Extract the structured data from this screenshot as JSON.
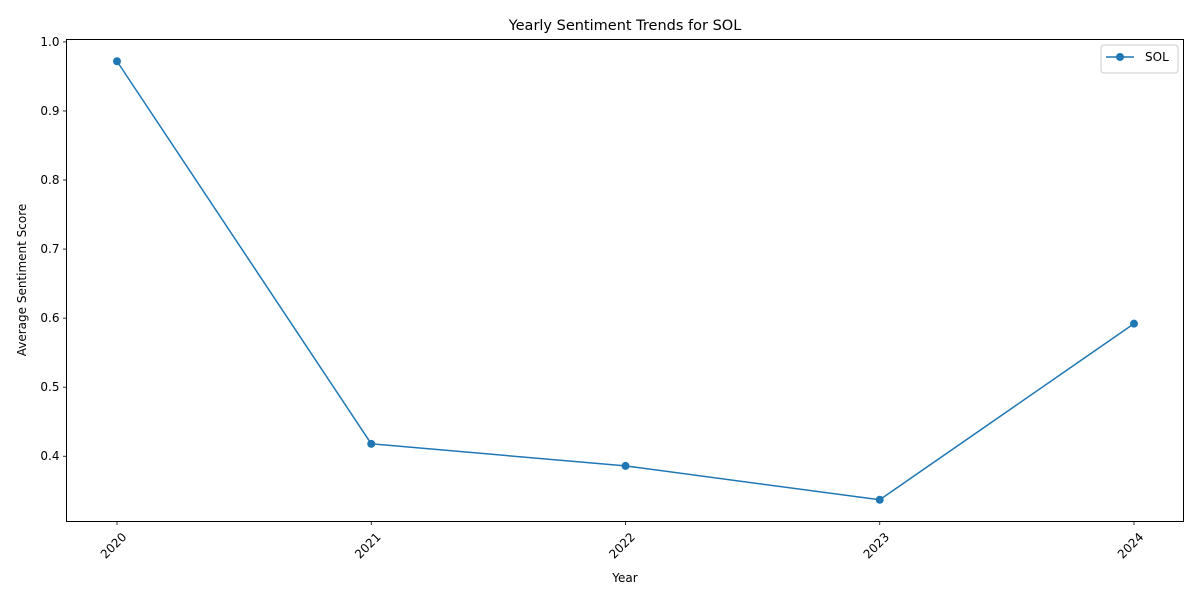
{
  "chart_data": {
    "type": "line",
    "title": "Yearly Sentiment Trends for SOL",
    "xlabel": "Year",
    "ylabel": "Average Sentiment Score",
    "x": [
      "2020",
      "2021",
      "2022",
      "2023",
      "2024"
    ],
    "series": [
      {
        "name": "SOL",
        "values": [
          0.972,
          0.418,
          0.386,
          0.337,
          0.592
        ],
        "color": "#1f77b4",
        "marker": "circle"
      }
    ],
    "yticks": [
      "0.4",
      "0.5",
      "0.6",
      "0.7",
      "0.8",
      "0.9",
      "1.0"
    ],
    "ylim": [
      0.3055,
      1.0035
    ],
    "grid": false,
    "legend": "top-right",
    "xtick_rotation": 45
  }
}
